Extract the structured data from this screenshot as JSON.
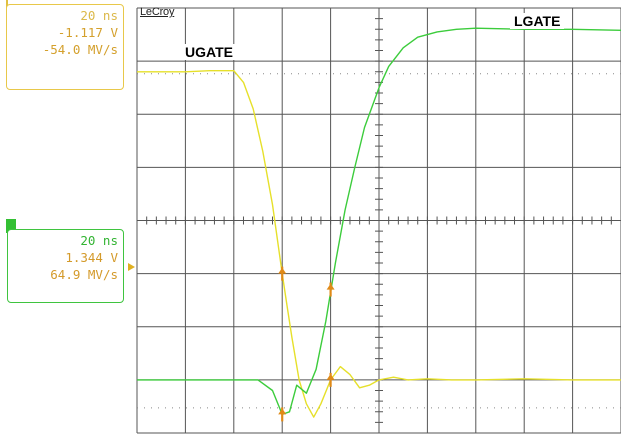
{
  "brand": "LeCroy",
  "colors": {
    "ugate_trace": "#e6e02a",
    "lgate_trace": "#3ccc3c",
    "grid": "#555555",
    "cursor": "#e08a18"
  },
  "measurements": {
    "ch1": {
      "timebase": "20 ns",
      "level": "-1.117 V",
      "slew": "-54.0 MV/s"
    },
    "ch2": {
      "timebase": "20 ns",
      "level": "1.344 V",
      "slew": "64.9 MV/s"
    }
  },
  "chart_data": {
    "type": "line",
    "title": "",
    "xlabel": "",
    "ylabel": "",
    "grid": true,
    "xlim": [
      0,
      10
    ],
    "ylim": [
      0,
      8
    ],
    "annotations": [
      "UGATE",
      "LGATE"
    ],
    "series": [
      {
        "name": "UGATE",
        "x": [
          0,
          0.5,
          1,
          1.5,
          2.0,
          2.2,
          2.4,
          2.6,
          2.8,
          3.0,
          3.1,
          3.2,
          3.35,
          3.5,
          3.65,
          3.8,
          4.0,
          4.2,
          4.4,
          4.6,
          4.8,
          5.0,
          5.3,
          5.6,
          6.0,
          6.5,
          7.0,
          8.0,
          9.0,
          10.0
        ],
        "y": [
          6.8,
          6.8,
          6.8,
          6.82,
          6.82,
          6.6,
          6.1,
          5.3,
          4.3,
          3.0,
          2.4,
          1.8,
          1.0,
          0.55,
          0.3,
          0.55,
          1.0,
          1.25,
          1.1,
          0.85,
          0.9,
          1.0,
          1.05,
          1.0,
          1.02,
          1.0,
          1.0,
          1.02,
          1.0,
          1.0
        ]
      },
      {
        "name": "LGATE",
        "x": [
          0,
          1.0,
          2.0,
          2.5,
          2.8,
          3.0,
          3.15,
          3.3,
          3.5,
          3.7,
          3.9,
          4.1,
          4.3,
          4.5,
          4.7,
          5.0,
          5.2,
          5.5,
          5.8,
          6.2,
          6.6,
          7.0,
          8.0,
          9.0,
          10.0
        ],
        "y": [
          1.0,
          1.0,
          1.0,
          1.0,
          0.8,
          0.35,
          0.4,
          0.9,
          0.75,
          1.2,
          2.1,
          3.2,
          4.2,
          5.0,
          5.75,
          6.5,
          6.9,
          7.25,
          7.45,
          7.55,
          7.6,
          7.62,
          7.6,
          7.6,
          7.58
        ]
      }
    ],
    "cursors": [
      {
        "x": 3.0,
        "y_ugate": 3.0,
        "y_lgate": 0.35
      },
      {
        "x": 4.0,
        "y_ugate": 1.0,
        "y_lgate": 2.7
      }
    ]
  }
}
